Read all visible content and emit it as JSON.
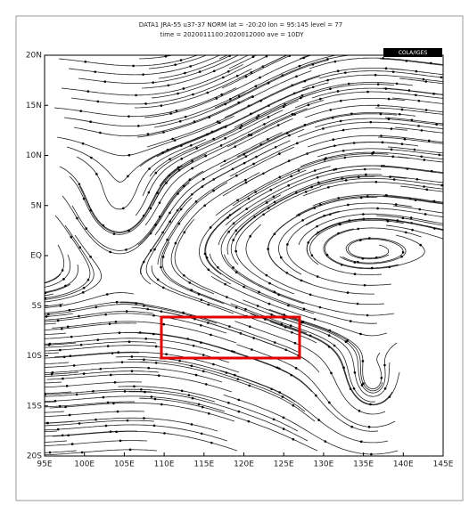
{
  "header": {
    "line1": "DATA1  JRA-55   u37-37   NORM   lat = -20:20   lon = 95:145   level = 77",
    "line2": "time = 2020011100:2020012000   ave = 10DY",
    "badge": "COLA/IGES"
  },
  "axes": {
    "lat_labels": [
      "20N",
      "15N",
      "10N",
      "5N",
      "EQ",
      "5S",
      "10S",
      "15S",
      "20S"
    ],
    "lon_labels": [
      "95E",
      "100E",
      "105E",
      "110E",
      "115E",
      "120E",
      "125E",
      "130E",
      "135E",
      "140E",
      "145E"
    ]
  }
}
